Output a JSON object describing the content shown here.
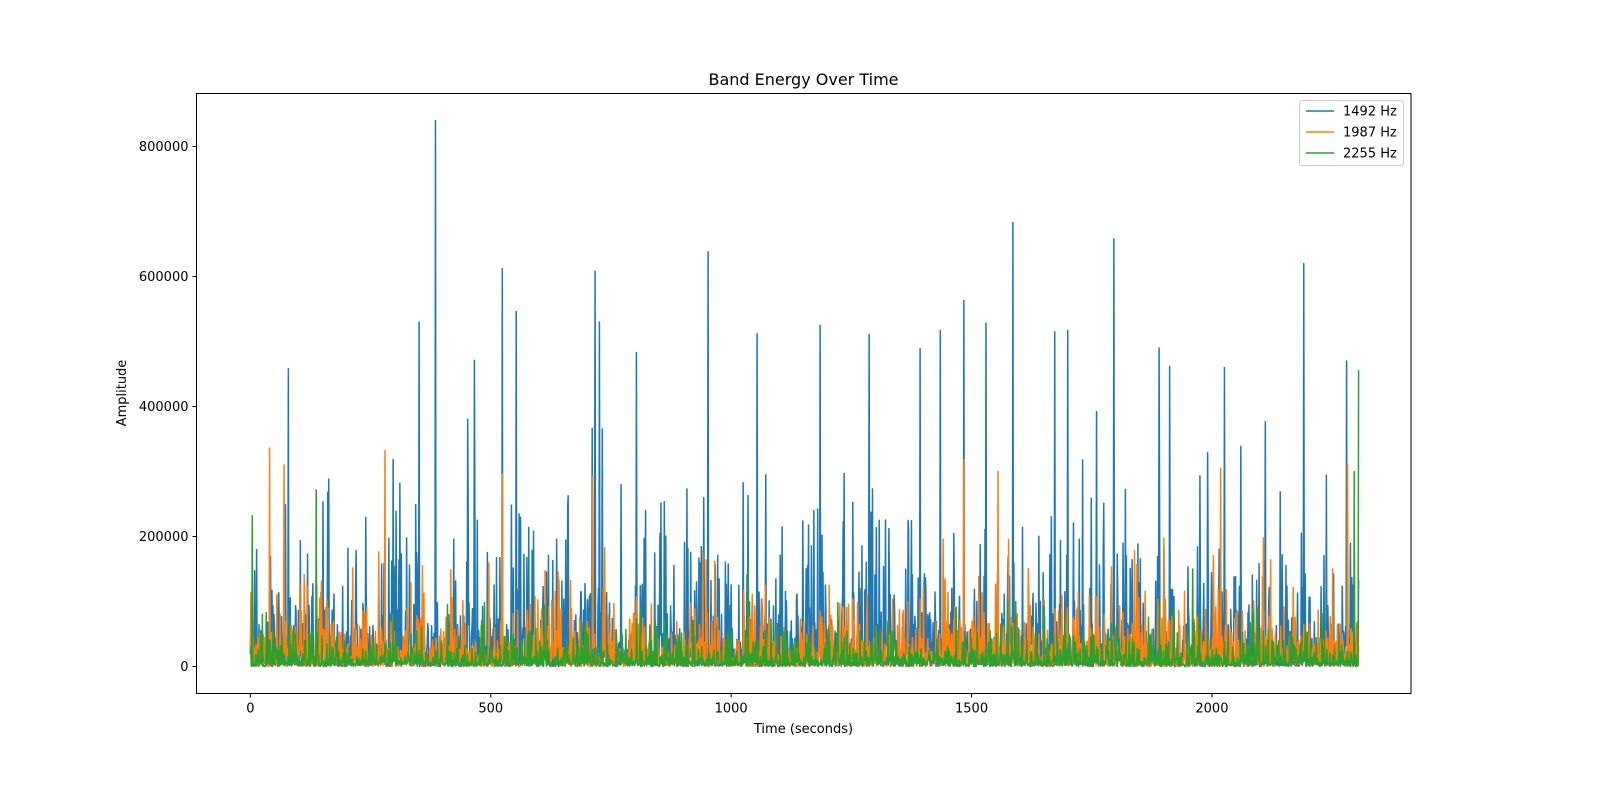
{
  "chart_data": {
    "type": "line",
    "title": "Band Energy Over Time",
    "xlabel": "Time (seconds)",
    "ylabel": "Amplitude",
    "xlim": [
      -112,
      2414
    ],
    "ylim": [
      -41500,
      881500
    ],
    "xticks": [
      0,
      500,
      1000,
      1500,
      2000
    ],
    "xtick_labels": [
      "0",
      "500",
      "1000",
      "1500",
      "2000"
    ],
    "yticks": [
      0,
      200000,
      400000,
      600000,
      800000
    ],
    "ytick_labels": [
      "0",
      "200000",
      "400000",
      "600000",
      "800000"
    ],
    "grid": false,
    "legend_position": "top-right",
    "duration": 2305,
    "series": [
      {
        "name": "1492 Hz",
        "color": "#1f77b4",
        "typical_mean": 90000,
        "typical_max": 400000,
        "peaks": [
          [
            385,
            840000
          ],
          [
            524,
            612000
          ],
          [
            717,
            608000
          ],
          [
            952,
            638000
          ],
          [
            1586,
            683000
          ],
          [
            1796,
            658000
          ],
          [
            2191,
            620000
          ],
          [
            351,
            530000
          ],
          [
            553,
            546000
          ],
          [
            1484,
            563000
          ],
          [
            1673,
            515000
          ],
          [
            79,
            458000
          ],
          [
            466,
            471000
          ],
          [
            803,
            483000
          ],
          [
            1185,
            525000
          ],
          [
            1287,
            511000
          ],
          [
            1393,
            489000
          ],
          [
            1435,
            517000
          ],
          [
            1054,
            512000
          ],
          [
            1530,
            528000
          ],
          [
            1890,
            490000
          ],
          [
            2280,
            470000
          ],
          [
            726,
            530000
          ],
          [
            1700,
            517000
          ],
          [
            1912,
            462000
          ],
          [
            2026,
            460000
          ]
        ]
      },
      {
        "name": "1987 Hz",
        "color": "#ff7f0e",
        "typical_mean": 50000,
        "typical_max": 200000,
        "peaks": [
          [
            40,
            336000
          ],
          [
            280,
            332000
          ],
          [
            712,
            292000
          ],
          [
            524,
            296000
          ],
          [
            1484,
            318000
          ],
          [
            2018,
            305000
          ],
          [
            2282,
            312000
          ],
          [
            70,
            310000
          ],
          [
            1555,
            300000
          ]
        ]
      },
      {
        "name": "2255 Hz",
        "color": "#2ca02c",
        "typical_mean": 25000,
        "typical_max": 140000,
        "peaks": [
          [
            4,
            232000
          ],
          [
            137,
            272000
          ],
          [
            2305,
            456000
          ],
          [
            2296,
            300000
          ],
          [
            1035,
            160000
          ],
          [
            1960,
            150000
          ]
        ]
      }
    ]
  }
}
